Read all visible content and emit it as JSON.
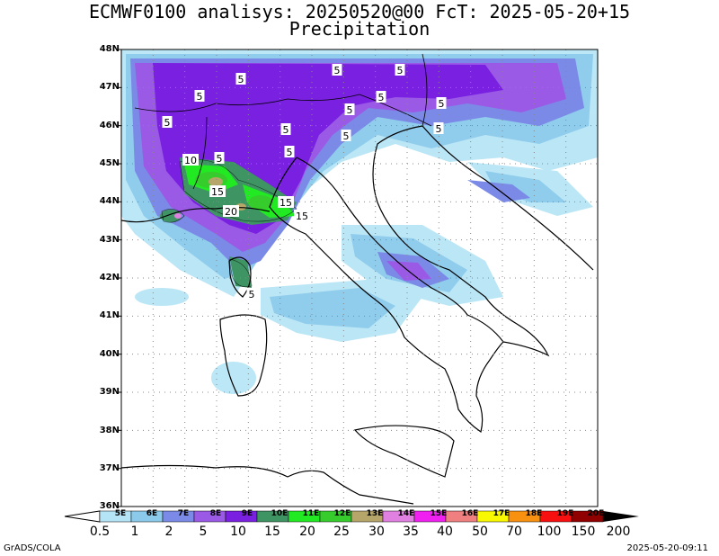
{
  "title_line1": "ECMWF0100 analisys: 20250520@00 FcT: 2025-05-20+15",
  "title_line2": "Precipitation",
  "lat_labels": [
    "48N",
    "47N",
    "46N",
    "45N",
    "44N",
    "43N",
    "42N",
    "41N",
    "40N",
    "39N",
    "38N",
    "37N",
    "36N"
  ],
  "lon_labels": [
    "5E",
    "6E",
    "7E",
    "8E",
    "9E",
    "10E",
    "11E",
    "12E",
    "13E",
    "14E",
    "15E",
    "16E",
    "17E",
    "18E",
    "19E",
    "20E"
  ],
  "colorbar": {
    "colors": [
      "#b4e4f5",
      "#8ccaec",
      "#7b8ae6",
      "#9a5ae6",
      "#7a20e0",
      "#3f9464",
      "#22ea22",
      "#36cc2c",
      "#b6a66a",
      "#e080e0",
      "#f020f0",
      "#f08080",
      "#f8f800",
      "#f89010",
      "#f81010",
      "#900000"
    ],
    "values": [
      "0.5",
      "1",
      "2",
      "5",
      "10",
      "15",
      "20",
      "25",
      "30",
      "35",
      "40",
      "50",
      "70",
      "100",
      "150",
      "200"
    ]
  },
  "contour_labels": [
    "5",
    "5",
    "5",
    "5",
    "5",
    "5",
    "5",
    "5",
    "5",
    "5",
    "5",
    "5",
    "5",
    "10",
    "15",
    "20",
    "15",
    "15",
    "5"
  ],
  "footer_left": "GrADS/COLA",
  "footer_right": "2025-05-20-09:11"
}
